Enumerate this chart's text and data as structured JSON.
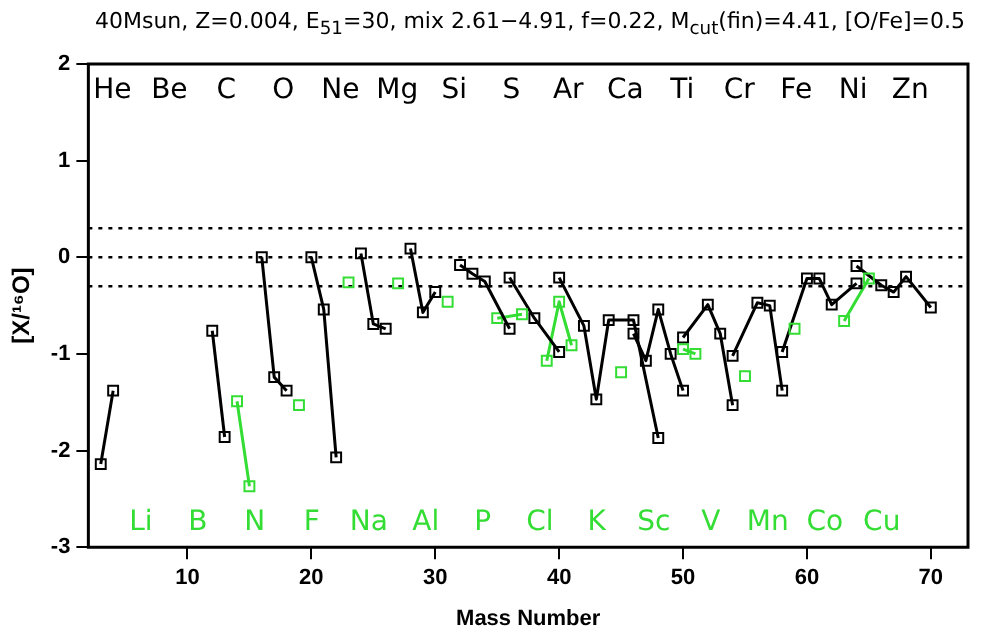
{
  "chart_data": {
    "type": "line",
    "title": "40Msun, Z=0.004, E$_{51}$=30, mix 2.61−4.91, f=0.22, M$_{cut}$(fin)=4.41, [O/Fe]=0.5",
    "xlabel": "Mass Number",
    "ylabel": "[X/¹⁶O]",
    "xlim": [
      2,
      73
    ],
    "xticks": [
      10,
      20,
      30,
      40,
      50,
      60,
      70
    ],
    "ylim": [
      -3,
      2
    ],
    "yticks": [
      -3,
      -2,
      -1,
      0,
      1,
      2
    ],
    "grid": false,
    "legend": false,
    "marker": "square",
    "line_style": "solid",
    "ref_lines": [
      {
        "axis": "y",
        "value": 0.3,
        "line_style": "dotted",
        "color": "#000000"
      },
      {
        "axis": "y",
        "value": 0,
        "line_style": "dotted",
        "color": "#000000"
      },
      {
        "axis": "y",
        "value": -0.3,
        "line_style": "dotted",
        "color": "#000000"
      }
    ],
    "series": [
      {
        "color": "#000000",
        "x": [
          3,
          4
        ],
        "values": [
          -2.14,
          -1.38
        ]
      },
      {
        "color": "#000000",
        "x": [
          12,
          13
        ],
        "values": [
          -0.76,
          -1.86
        ]
      },
      {
        "color": "#33dd33",
        "x": [
          14,
          15
        ],
        "values": [
          -1.49,
          -2.37
        ]
      },
      {
        "color": "#000000",
        "x": [
          16,
          17,
          18
        ],
        "values": [
          0,
          -1.24,
          -1.38
        ]
      },
      {
        "color": "#33dd33",
        "x": [
          19
        ],
        "values": [
          -1.53
        ]
      },
      {
        "color": "#000000",
        "x": [
          20,
          21,
          22
        ],
        "values": [
          0,
          -0.54,
          -2.07
        ]
      },
      {
        "color": "#33dd33",
        "x": [
          23
        ],
        "values": [
          -0.26
        ]
      },
      {
        "color": "#000000",
        "x": [
          24,
          25,
          26
        ],
        "values": [
          0.04,
          -0.69,
          -0.74
        ]
      },
      {
        "color": "#33dd33",
        "x": [
          27
        ],
        "values": [
          -0.27
        ]
      },
      {
        "color": "#000000",
        "x": [
          28,
          29,
          30
        ],
        "values": [
          0.09,
          -0.57,
          -0.36
        ]
      },
      {
        "color": "#33dd33",
        "x": [
          31
        ],
        "values": [
          -0.46
        ]
      },
      {
        "color": "#000000",
        "x": [
          32,
          33,
          34,
          36
        ],
        "values": [
          -0.08,
          -0.17,
          -0.25,
          -0.74
        ]
      },
      {
        "color": "#33dd33",
        "x": [
          35,
          37
        ],
        "values": [
          -0.63,
          -0.59
        ]
      },
      {
        "color": "#000000",
        "x": [
          36,
          38,
          40
        ],
        "values": [
          -0.21,
          -0.63,
          -0.98
        ]
      },
      {
        "color": "#33dd33",
        "x": [
          39,
          40,
          41
        ],
        "values": [
          -1.07,
          -0.46,
          -0.91
        ]
      },
      {
        "color": "#000000",
        "x": [
          40,
          42,
          43,
          44,
          46,
          48
        ],
        "values": [
          -0.21,
          -0.71,
          -1.47,
          -0.65,
          -0.65,
          -1.87
        ]
      },
      {
        "color": "#33dd33",
        "x": [
          45
        ],
        "values": [
          -1.19
        ]
      },
      {
        "color": "#000000",
        "x": [
          46,
          47,
          48,
          49,
          50
        ],
        "values": [
          -0.79,
          -1.07,
          -0.54,
          -1.0,
          -1.38
        ]
      },
      {
        "color": "#33dd33",
        "x": [
          50,
          51
        ],
        "values": [
          -0.95,
          -1.0
        ]
      },
      {
        "color": "#000000",
        "x": [
          50,
          52,
          53,
          54
        ],
        "values": [
          -0.83,
          -0.49,
          -0.79,
          -1.53
        ]
      },
      {
        "color": "#33dd33",
        "x": [
          55
        ],
        "values": [
          -1.23
        ]
      },
      {
        "color": "#000000",
        "x": [
          54,
          56,
          57,
          58
        ],
        "values": [
          -1.02,
          -0.47,
          -0.5,
          -1.38
        ]
      },
      {
        "color": "#33dd33",
        "x": [
          59
        ],
        "values": [
          -0.74
        ]
      },
      {
        "color": "#000000",
        "x": [
          58,
          60,
          61,
          62,
          64
        ],
        "values": [
          -0.98,
          -0.22,
          -0.22,
          -0.49,
          -0.27
        ]
      },
      {
        "color": "#33dd33",
        "x": [
          63,
          65
        ],
        "values": [
          -0.66,
          -0.22
        ]
      },
      {
        "color": "#000000",
        "x": [
          64,
          66,
          67,
          68,
          70
        ],
        "values": [
          -0.09,
          -0.29,
          -0.36,
          -0.2,
          -0.52
        ]
      }
    ],
    "annotations": [
      "He",
      "Li",
      "Be",
      "B",
      "C",
      "N",
      "O",
      "F",
      "Ne",
      "Na",
      "Mg",
      "Al",
      "Si",
      "P",
      "S",
      "Cl",
      "Ar",
      "K",
      "Ca",
      "Sc",
      "Ti",
      "V",
      "Cr",
      "Mn",
      "Fe",
      "Co",
      "Ni",
      "Cu",
      "Zn"
    ]
  }
}
